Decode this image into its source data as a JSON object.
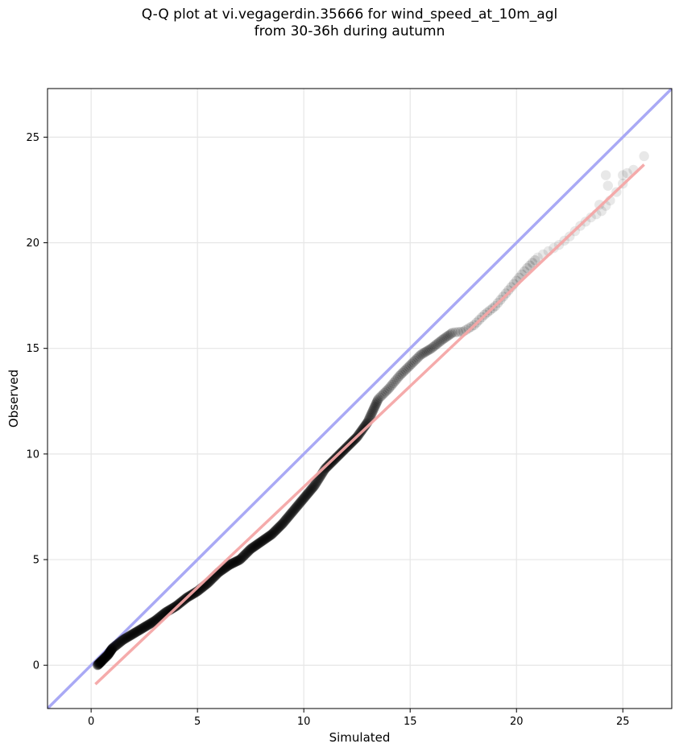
{
  "title_line1": "Q-Q plot at vi.vegagerdin.35666 for wind_speed_at_10m_agl",
  "title_line2": "from 30-36h during autumn",
  "chart_data": {
    "type": "scatter",
    "title": "Q-Q plot at vi.vegagerdin.35666 for wind_speed_at_10m_agl from 30-36h during autumn",
    "xlabel": "Simulated",
    "ylabel": "Observed",
    "xlim": [
      -2.05,
      27.3
    ],
    "ylim": [
      -2.05,
      27.3
    ],
    "grid": true,
    "x_ticks": [
      0,
      5,
      10,
      15,
      20,
      25
    ],
    "y_ticks": [
      0,
      5,
      10,
      15,
      20,
      25
    ],
    "x_tick_labels": [
      "0",
      "5",
      "10",
      "15",
      "20",
      "25"
    ],
    "y_tick_labels": [
      "0",
      "5",
      "10",
      "15",
      "20",
      "25"
    ],
    "colors": {
      "points": "#000000",
      "identity_line": "#a9a9f5",
      "fit_line": "#f4a6a6",
      "grid": "#e6e6e6"
    },
    "identity_line": {
      "x": [
        -2.05,
        27.3
      ],
      "y": [
        -2.05,
        27.3
      ]
    },
    "fit_line": {
      "x": [
        0.2,
        26.0
      ],
      "y": [
        -0.9,
        23.7
      ]
    },
    "quantile_curve": [
      [
        0.3,
        0.0
      ],
      [
        0.5,
        0.2
      ],
      [
        0.8,
        0.5
      ],
      [
        1.0,
        0.8
      ],
      [
        1.5,
        1.2
      ],
      [
        2.0,
        1.5
      ],
      [
        2.5,
        1.8
      ],
      [
        3.0,
        2.1
      ],
      [
        3.5,
        2.5
      ],
      [
        4.0,
        2.8
      ],
      [
        4.5,
        3.2
      ],
      [
        5.0,
        3.5
      ],
      [
        5.5,
        3.9
      ],
      [
        6.0,
        4.4
      ],
      [
        6.5,
        4.75
      ],
      [
        7.0,
        5.0
      ],
      [
        7.5,
        5.5
      ],
      [
        8.0,
        5.85
      ],
      [
        8.5,
        6.2
      ],
      [
        9.0,
        6.7
      ],
      [
        9.5,
        7.3
      ],
      [
        10.0,
        7.9
      ],
      [
        10.5,
        8.5
      ],
      [
        11.0,
        9.3
      ],
      [
        11.5,
        9.8
      ],
      [
        12.0,
        10.3
      ],
      [
        12.5,
        10.8
      ],
      [
        13.0,
        11.5
      ],
      [
        13.5,
        12.6
      ],
      [
        14.0,
        13.1
      ],
      [
        14.5,
        13.7
      ],
      [
        15.0,
        14.2
      ],
      [
        15.5,
        14.7
      ],
      [
        16.0,
        15.0
      ],
      [
        16.5,
        15.4
      ],
      [
        17.0,
        15.75
      ],
      [
        17.5,
        15.8
      ],
      [
        18.0,
        16.1
      ],
      [
        18.5,
        16.6
      ],
      [
        19.0,
        17.0
      ],
      [
        19.5,
        17.6
      ],
      [
        20.0,
        18.2
      ],
      [
        20.5,
        18.8
      ],
      [
        21.0,
        19.3
      ],
      [
        21.5,
        19.6
      ],
      [
        22.0,
        19.9
      ],
      [
        22.5,
        20.3
      ],
      [
        23.0,
        20.8
      ],
      [
        23.5,
        21.2
      ],
      [
        24.0,
        21.5
      ],
      [
        24.4,
        22.0
      ],
      [
        25.0,
        22.8
      ],
      [
        26.0,
        24.1
      ]
    ],
    "tail_points": [
      [
        24.2,
        23.2
      ],
      [
        24.3,
        22.7
      ],
      [
        25.0,
        23.2
      ],
      [
        25.2,
        23.3
      ],
      [
        26.0,
        24.1
      ],
      [
        23.9,
        21.8
      ]
    ]
  }
}
